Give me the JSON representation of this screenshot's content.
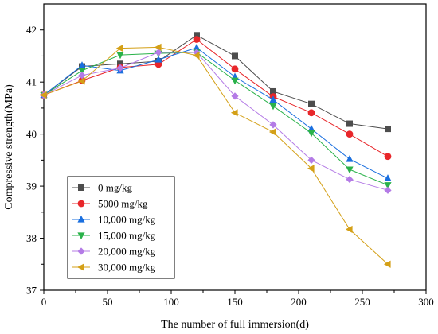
{
  "chart_data": {
    "type": "line",
    "xlabel": "The number of full immersion(d)",
    "ylabel": "Compressive strength(MPa)",
    "xlim": [
      0,
      300
    ],
    "ylim": [
      37,
      42.5
    ],
    "xticks": [
      0,
      50,
      100,
      150,
      200,
      250,
      300
    ],
    "yticks": [
      37,
      38,
      39,
      40,
      41,
      42
    ],
    "x": [
      0,
      30,
      60,
      90,
      120,
      150,
      180,
      210,
      240,
      270
    ],
    "legend_position": "lower-left",
    "grid": false,
    "series": [
      {
        "name": "0 mg/kg",
        "color": "#4d4d4d",
        "marker": "square",
        "values": [
          40.75,
          41.3,
          41.35,
          41.4,
          41.9,
          41.5,
          40.82,
          40.58,
          40.2,
          40.1
        ]
      },
      {
        "name": "5000 mg/kg",
        "color": "#e8262a",
        "marker": "circle",
        "values": [
          40.75,
          41.03,
          41.28,
          41.34,
          41.82,
          41.25,
          40.72,
          40.41,
          40.0,
          39.57
        ]
      },
      {
        "name": "10,000 mg/kg",
        "color": "#1a6fdf",
        "marker": "triangle-up",
        "values": [
          40.75,
          41.32,
          41.22,
          41.43,
          41.66,
          41.1,
          40.66,
          40.1,
          39.52,
          39.15
        ]
      },
      {
        "name": "15,000 mg/kg",
        "color": "#2ab24a",
        "marker": "triangle-down",
        "values": [
          40.75,
          41.22,
          41.52,
          41.55,
          41.57,
          41.03,
          40.54,
          40.02,
          39.32,
          39.02
        ]
      },
      {
        "name": "20,000 mg/kg",
        "color": "#b47be6",
        "marker": "diamond",
        "values": [
          40.75,
          41.13,
          41.27,
          41.57,
          41.57,
          40.73,
          40.18,
          39.5,
          39.13,
          38.92
        ]
      },
      {
        "name": "30,000 mg/kg",
        "color": "#d4a017",
        "marker": "triangle-left",
        "values": [
          40.75,
          41.02,
          41.65,
          41.67,
          41.51,
          40.41,
          40.04,
          39.34,
          38.17,
          37.5
        ]
      }
    ]
  }
}
